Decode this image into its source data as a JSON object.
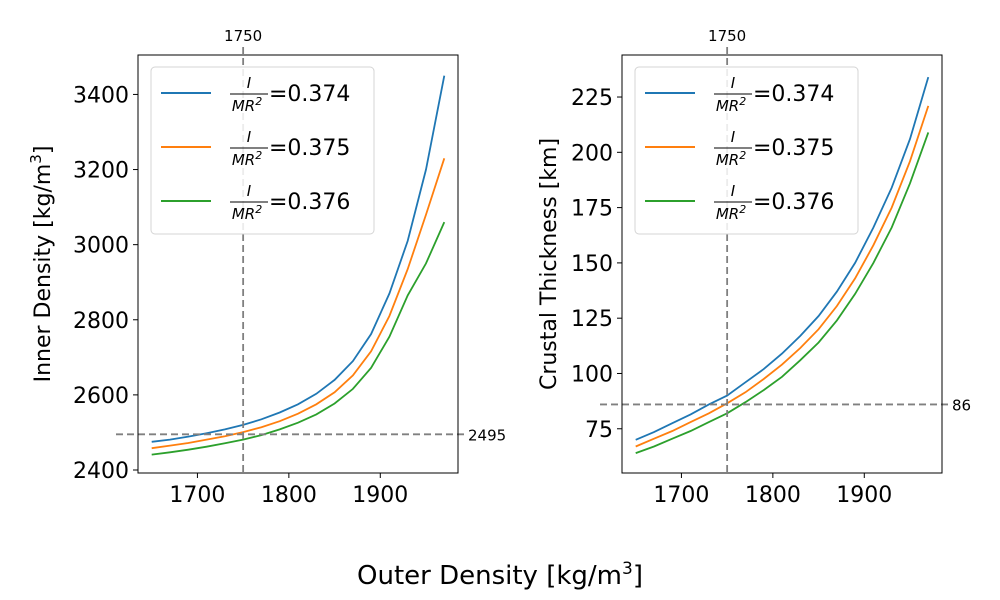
{
  "figure": {
    "xlabel_text": "Outer Density [kg/m",
    "xlabel_sup": "3",
    "xlabel_end": "]"
  },
  "chart_data": [
    {
      "type": "line",
      "xlabel": "Outer Density [kg/m3]",
      "ylabel_text": "Inner Density [kg/m",
      "ylabel_sup": "3",
      "ylabel_end": "]",
      "xlim": [
        1635,
        1985
      ],
      "ylim": [
        2392,
        3505
      ],
      "xticks": [
        1700,
        1800,
        1900
      ],
      "yticks": [
        2400,
        2600,
        2800,
        3000,
        3200,
        3400
      ],
      "vline": {
        "x": 1750,
        "label": "1750"
      },
      "hline": {
        "y": 2495,
        "label": "2495"
      },
      "legend_loc": "upper-left",
      "x": [
        1650,
        1670,
        1690,
        1710,
        1730,
        1750,
        1770,
        1790,
        1810,
        1830,
        1850,
        1870,
        1890,
        1910,
        1930,
        1950,
        1970
      ],
      "series": [
        {
          "name_num": "I",
          "name_den": "MR",
          "name_den_sup": "2",
          "name_value": "=0.374",
          "color": "#1f77b4",
          "values": [
            2475,
            2481,
            2489,
            2498,
            2508,
            2520,
            2535,
            2553,
            2575,
            2603,
            2640,
            2690,
            2762,
            2870,
            3010,
            3200,
            3450
          ]
        },
        {
          "name_num": "I",
          "name_den": "MR",
          "name_den_sup": "2",
          "name_value": "=0.375",
          "color": "#ff7f0e",
          "values": [
            2458,
            2465,
            2472,
            2481,
            2490,
            2501,
            2514,
            2530,
            2550,
            2575,
            2607,
            2652,
            2716,
            2810,
            2935,
            3080,
            3230
          ]
        },
        {
          "name_num": "I",
          "name_den": "MR",
          "name_den_sup": "2",
          "name_value": "=0.376",
          "color": "#2ca02c",
          "values": [
            2441,
            2447,
            2454,
            2462,
            2471,
            2481,
            2493,
            2508,
            2526,
            2548,
            2577,
            2616,
            2672,
            2755,
            2865,
            2950,
            3060
          ]
        }
      ]
    },
    {
      "type": "line",
      "xlabel": "Outer Density [kg/m3]",
      "ylabel_text": "Crustal Thickness [km]",
      "xlim": [
        1635,
        1985
      ],
      "ylim": [
        55,
        244
      ],
      "xticks": [
        1700,
        1800,
        1900
      ],
      "yticks": [
        75,
        100,
        125,
        150,
        175,
        200,
        225
      ],
      "vline": {
        "x": 1750,
        "label": "1750"
      },
      "hline": {
        "y": 86,
        "label": "86"
      },
      "legend_loc": "upper-left",
      "x": [
        1650,
        1670,
        1690,
        1710,
        1730,
        1750,
        1770,
        1790,
        1810,
        1830,
        1850,
        1870,
        1890,
        1910,
        1930,
        1950,
        1970
      ],
      "series": [
        {
          "name_num": "I",
          "name_den": "MR",
          "name_den_sup": "2",
          "name_value": "=0.374",
          "color": "#1f77b4",
          "values": [
            70,
            73.5,
            77.5,
            81.5,
            86,
            90,
            96,
            102,
            109,
            117,
            126,
            137,
            150,
            166,
            184,
            206,
            234
          ]
        },
        {
          "name_num": "I",
          "name_den": "MR",
          "name_den_sup": "2",
          "name_value": "=0.375",
          "color": "#ff7f0e",
          "values": [
            67,
            70.5,
            74,
            78,
            82,
            86.5,
            91.5,
            97.5,
            104,
            111.5,
            120,
            130.5,
            143,
            158,
            175,
            196,
            221
          ]
        },
        {
          "name_num": "I",
          "name_den": "MR",
          "name_den_sup": "2",
          "name_value": "=0.376",
          "color": "#2ca02c",
          "values": [
            64,
            67,
            70.5,
            74,
            78,
            82,
            87,
            92.5,
            98.5,
            106,
            114,
            124,
            136,
            150,
            166,
            186,
            209
          ]
        }
      ]
    }
  ]
}
